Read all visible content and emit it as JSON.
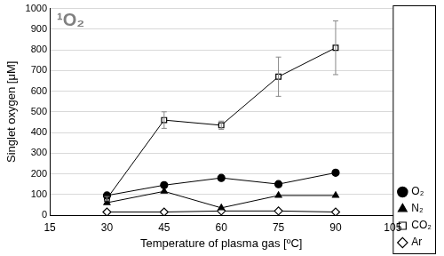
{
  "chart_data": {
    "type": "line",
    "title": "¹O₂",
    "x_label": "Temperature of plasma gas [ºC]",
    "y_label": "Singlet oxygen [μM]",
    "x": [
      30,
      45,
      60,
      75,
      90
    ],
    "series": [
      {
        "name": "O₂",
        "color": "#000000",
        "marker": "circle",
        "values": [
          95,
          145,
          180,
          150,
          205
        ]
      },
      {
        "name": "N₂",
        "color": "#000000",
        "marker": "triangle",
        "values": [
          60,
          115,
          35,
          95,
          95
        ]
      },
      {
        "name": "CO₂",
        "color": "#000000",
        "marker": "square_open",
        "values": [
          80,
          460,
          435,
          670,
          810
        ],
        "errors": [
          10,
          40,
          20,
          95,
          130
        ]
      },
      {
        "name": "Ar",
        "color": "#000000",
        "marker": "diamond_open",
        "values": [
          15,
          15,
          20,
          20,
          15
        ]
      }
    ],
    "xlim": [
      15,
      105
    ],
    "xticks": [
      15,
      30,
      45,
      60,
      75,
      90,
      105
    ],
    "ylim": [
      0,
      1000
    ],
    "yticks": [
      0,
      100,
      200,
      300,
      400,
      500,
      600,
      700,
      800,
      900,
      1000
    ],
    "grid": "y",
    "legend": "right"
  }
}
